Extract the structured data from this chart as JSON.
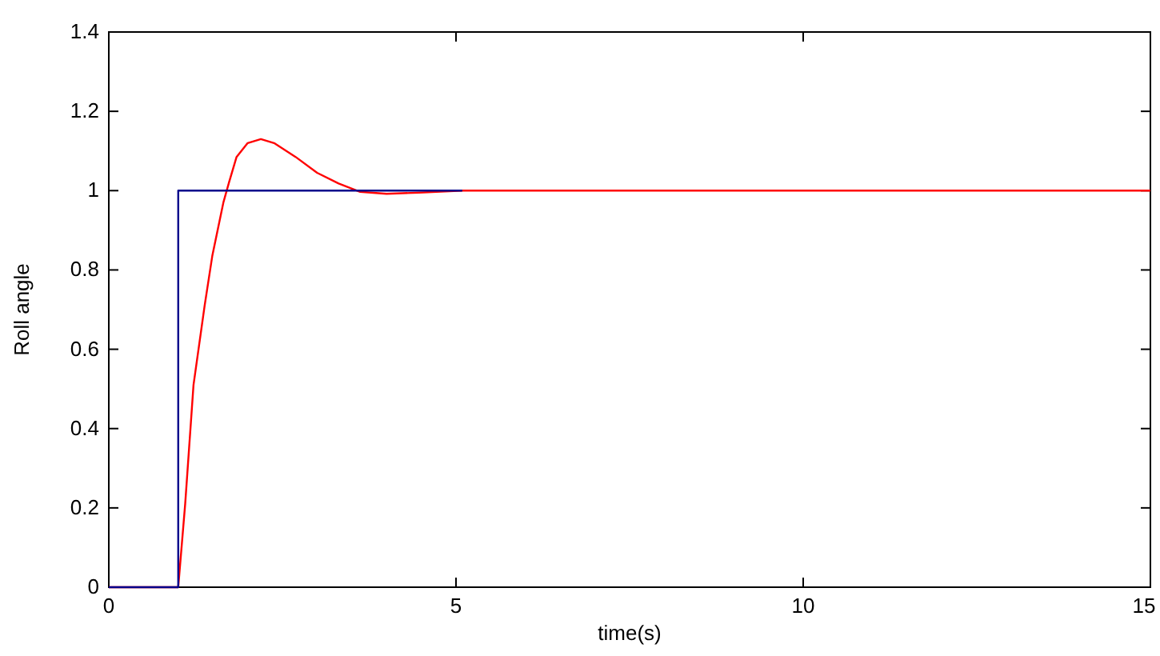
{
  "chart_data": {
    "type": "line",
    "xlabel": "time(s)",
    "ylabel": "Roll angle",
    "xlim": [
      0,
      15
    ],
    "xticks": [
      0,
      5,
      10,
      15
    ],
    "ylim": [
      0,
      1.4
    ],
    "yticks": [
      0,
      0.2,
      0.4,
      0.6,
      0.8,
      1,
      1.2,
      1.4
    ],
    "grid": false,
    "line_style": "solid",
    "series": [
      {
        "color": "#ff0000",
        "x": [
          0,
          1,
          1.1,
          1.22,
          1.38,
          1.49,
          1.65,
          1.73,
          1.84,
          2,
          2.19,
          2.38,
          2.69,
          3,
          3.31,
          3.62,
          4,
          4.47,
          5.09,
          15
        ],
        "values": [
          0,
          0,
          0.21,
          0.51,
          0.71,
          0.835,
          0.97,
          1.02,
          1.085,
          1.12,
          1.13,
          1.12,
          1.085,
          1.045,
          1.018,
          0.997,
          0.992,
          0.995,
          1,
          1
        ]
      },
      {
        "type": "step",
        "color": "#00008b",
        "x": [
          0,
          1,
          5.09
        ],
        "values": [
          0,
          1,
          1
        ]
      }
    ]
  }
}
